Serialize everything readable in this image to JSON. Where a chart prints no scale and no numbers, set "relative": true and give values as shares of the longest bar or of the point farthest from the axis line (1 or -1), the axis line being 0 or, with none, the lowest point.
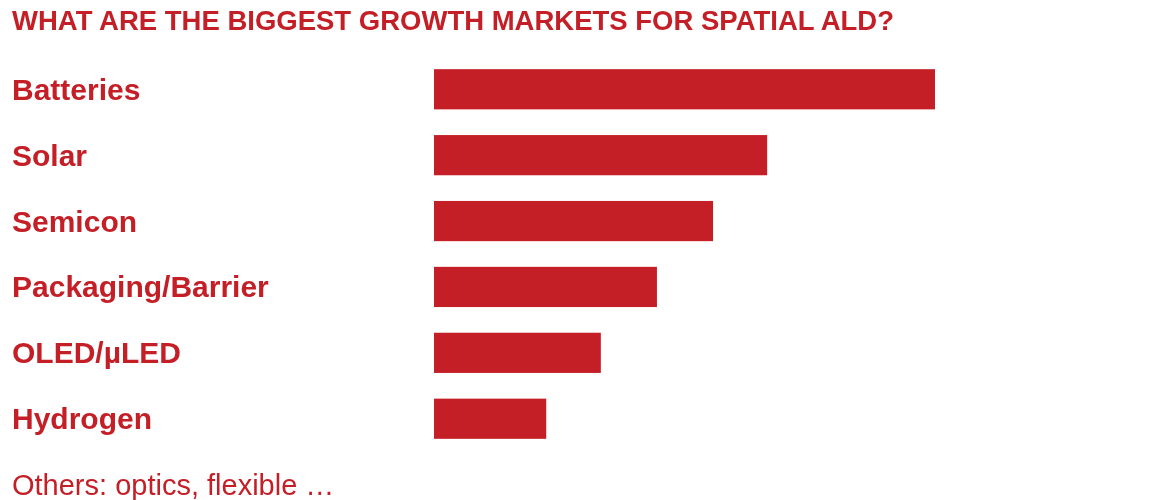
{
  "chart_data": {
    "type": "bar",
    "orientation": "horizontal",
    "relative": true,
    "title": "WHAT ARE THE BIGGEST GROWTH MARKETS FOR SPATIAL ALD?",
    "categories": [
      "Batteries",
      "Solar",
      "Semicon",
      "Packaging/Barrier",
      "OLED/µLED",
      "Hydrogen"
    ],
    "values": [
      1,
      0.665,
      0.557,
      0.445,
      0.333,
      0.224
    ],
    "color": "#c41f26",
    "annotations": [
      "Others: optics, flexible …"
    ]
  }
}
